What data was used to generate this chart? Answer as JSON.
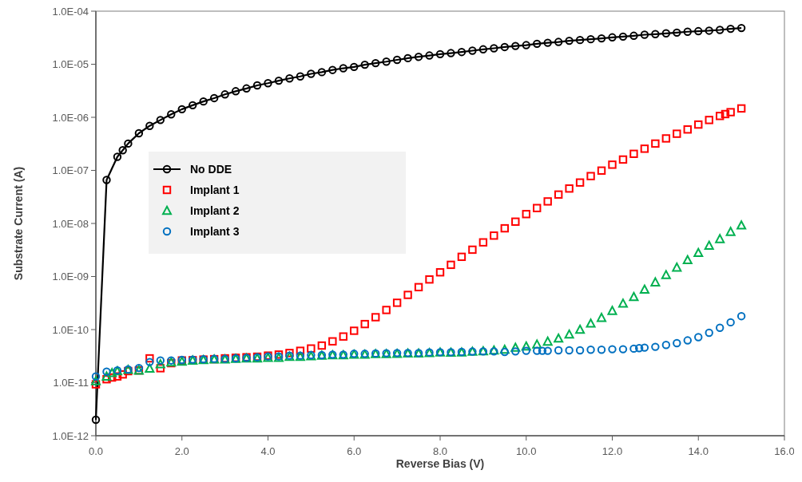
{
  "chart_data": {
    "type": "scatter",
    "xlabel": "Reverse Bias (V)",
    "ylabel": "Substrate Current (A)",
    "log": "y",
    "grid": false,
    "legend": "left",
    "xlim": [
      0,
      16
    ],
    "xticks": [
      {
        "value": 0,
        "label": "0.0"
      },
      {
        "value": 2,
        "label": "2.0"
      },
      {
        "value": 4,
        "label": "4.0"
      },
      {
        "value": 6,
        "label": "6.0"
      },
      {
        "value": 8,
        "label": "8.0"
      },
      {
        "value": 10,
        "label": "10.0"
      },
      {
        "value": 12,
        "label": "12.0"
      },
      {
        "value": 14,
        "label": "14.0"
      },
      {
        "value": 16,
        "label": "16.0"
      }
    ],
    "ylim": [
      1e-12,
      0.0001
    ],
    "yticks": [
      {
        "value": 1e-12,
        "label": "1.0E-12"
      },
      {
        "value": 1e-11,
        "label": "1.0E-11"
      },
      {
        "value": 1e-10,
        "label": "1.0E-10"
      },
      {
        "value": 1e-09,
        "label": "1.0E-09"
      },
      {
        "value": 1e-08,
        "label": "1.0E-08"
      },
      {
        "value": 1e-07,
        "label": "1.0E-07"
      },
      {
        "value": 1e-06,
        "label": "1.0E-06"
      },
      {
        "value": 1e-05,
        "label": "1.0E-05"
      },
      {
        "value": 0.0001,
        "label": "1.0E-04"
      }
    ],
    "series": [
      {
        "name": "No DDE",
        "type": "line",
        "marker": "circle",
        "line_style": "solid",
        "color": "#000000",
        "x": [
          0,
          0.25,
          0.5,
          0.625,
          0.75,
          1,
          1.25,
          1.5,
          1.75,
          2,
          2.25,
          2.5,
          2.75,
          3,
          3.25,
          3.5,
          3.75,
          4,
          4.25,
          4.5,
          4.75,
          5,
          5.25,
          5.5,
          5.75,
          6,
          6.25,
          6.5,
          6.75,
          7,
          7.25,
          7.5,
          7.75,
          8,
          8.25,
          8.5,
          8.75,
          9,
          9.25,
          9.5,
          9.75,
          10,
          10.25,
          10.5,
          10.75,
          11,
          11.25,
          11.5,
          11.75,
          12,
          12.25,
          12.5,
          12.75,
          13,
          13.25,
          13.5,
          13.75,
          14,
          14.25,
          14.5,
          14.75,
          15
        ],
        "values": [
          2e-12,
          6.6e-08,
          1.8e-07,
          2.4e-07,
          3.2e-07,
          5e-07,
          6.9e-07,
          8.9e-07,
          1.14e-06,
          1.42e-06,
          1.69e-06,
          1.99e-06,
          2.3e-06,
          2.7e-06,
          3.1e-06,
          3.5e-06,
          4e-06,
          4.4e-06,
          4.9e-06,
          5.4e-06,
          5.9e-06,
          6.6e-06,
          7.1e-06,
          7.8e-06,
          8.4e-06,
          8.9e-06,
          9.8e-06,
          1.05e-05,
          1.12e-05,
          1.21e-05,
          1.3e-05,
          1.38e-05,
          1.46e-05,
          1.55e-05,
          1.62e-05,
          1.7e-05,
          1.8e-05,
          1.91e-05,
          2e-05,
          2.11e-05,
          2.21e-05,
          2.29e-05,
          2.43e-05,
          2.54e-05,
          2.63e-05,
          2.77e-05,
          2.86e-05,
          2.96e-05,
          3.07e-05,
          3.21e-05,
          3.32e-05,
          3.44e-05,
          3.6e-05,
          3.69e-05,
          3.82e-05,
          3.95e-05,
          4.1e-05,
          4.2e-05,
          4.29e-05,
          4.43e-05,
          4.65e-05,
          4.82e-05
        ]
      },
      {
        "name": "Implant 1",
        "marker": "square",
        "color": "#ff0000",
        "x": [
          0,
          0.25,
          0.375,
          0.5,
          0.625,
          0.75,
          1,
          1.25,
          1.5,
          1.75,
          2,
          2.25,
          2.5,
          2.75,
          3,
          3.25,
          3.5,
          3.75,
          4,
          4.25,
          4.5,
          4.75,
          5,
          5.25,
          5.5,
          5.75,
          6,
          6.25,
          6.5,
          6.75,
          7,
          7.25,
          7.5,
          7.75,
          8,
          8.25,
          8.5,
          8.75,
          9,
          9.25,
          9.5,
          9.75,
          10,
          10.25,
          10.5,
          10.75,
          11,
          11.25,
          11.5,
          11.75,
          12,
          12.25,
          12.5,
          12.75,
          13,
          13.25,
          13.5,
          13.75,
          14,
          14.25,
          14.5,
          14.625,
          14.75,
          15
        ],
        "values": [
          9.3e-12,
          1.16e-11,
          1.25e-11,
          1.31e-11,
          1.43e-11,
          1.65e-11,
          1.7e-11,
          2.87e-11,
          1.87e-11,
          2.33e-11,
          2.62e-11,
          2.65e-11,
          2.72e-11,
          2.77e-11,
          2.87e-11,
          2.94e-11,
          3.01e-11,
          3.08e-11,
          3.23e-11,
          3.38e-11,
          3.62e-11,
          3.98e-11,
          4.4e-11,
          5e-11,
          6e-11,
          7.4e-11,
          9.5e-11,
          1.27e-10,
          1.71e-10,
          2.34e-10,
          3.2e-10,
          4.5e-10,
          6.3e-10,
          8.8e-10,
          1.2e-09,
          1.66e-09,
          2.35e-09,
          3.2e-09,
          4.4e-09,
          5.9e-09,
          8.1e-09,
          1.08e-08,
          1.5e-08,
          1.95e-08,
          2.6e-08,
          3.5e-08,
          4.55e-08,
          5.9e-08,
          7.8e-08,
          9.9e-08,
          1.28e-07,
          1.6e-07,
          2.05e-07,
          2.56e-07,
          3.2e-07,
          4e-07,
          4.9e-07,
          5.9e-07,
          7.3e-07,
          8.9e-07,
          1.06e-06,
          1.15e-06,
          1.25e-06,
          1.47e-06
        ]
      },
      {
        "name": "Implant 2",
        "marker": "triangle",
        "color": "#00b050",
        "x": [
          0,
          0.25,
          0.375,
          0.5,
          0.75,
          1,
          1.25,
          1.5,
          1.75,
          2,
          2.25,
          2.5,
          2.75,
          3,
          3.25,
          3.5,
          3.75,
          4,
          4.25,
          4.5,
          4.75,
          5,
          5.25,
          5.5,
          5.75,
          6,
          6.25,
          6.5,
          6.75,
          7,
          7.25,
          7.5,
          7.75,
          8,
          8.25,
          8.5,
          8.75,
          9,
          9.25,
          9.5,
          9.75,
          10,
          10.25,
          10.5,
          10.75,
          11,
          11.25,
          11.5,
          11.75,
          12,
          12.25,
          12.5,
          12.75,
          13,
          13.25,
          13.5,
          13.75,
          14,
          14.25,
          14.5,
          14.75,
          15
        ],
        "values": [
          1.07e-11,
          1.31e-11,
          1.52e-11,
          1.65e-11,
          1.75e-11,
          1.7e-11,
          1.85e-11,
          2.23e-11,
          2.42e-11,
          2.5e-11,
          2.62e-11,
          2.68e-11,
          2.74e-11,
          2.74e-11,
          2.81e-11,
          2.87e-11,
          2.87e-11,
          2.94e-11,
          2.94e-11,
          3.08e-11,
          3.08e-11,
          3.15e-11,
          3.23e-11,
          3.3e-11,
          3.3e-11,
          3.38e-11,
          3.38e-11,
          3.47e-11,
          3.47e-11,
          3.5e-11,
          3.55e-11,
          3.55e-11,
          3.62e-11,
          3.71e-11,
          3.7e-11,
          3.71e-11,
          3.85e-11,
          3.93e-11,
          4.07e-11,
          4.2e-11,
          4.57e-11,
          4.84e-11,
          5.26e-11,
          5.96e-11,
          6.8e-11,
          8.1e-11,
          1e-10,
          1.3e-10,
          1.67e-10,
          2.26e-10,
          3.1e-10,
          4.13e-10,
          5.7e-10,
          7.8e-10,
          1.07e-09,
          1.48e-09,
          2.04e-09,
          2.79e-09,
          3.82e-09,
          5.1e-09,
          6.97e-09,
          9.2e-09
        ]
      },
      {
        "name": "Implant 3",
        "marker": "circle",
        "color": "#0070c0",
        "x": [
          0,
          0.25,
          0.5,
          0.75,
          1,
          1.25,
          1.5,
          1.75,
          2,
          2.25,
          2.5,
          2.75,
          3,
          3.25,
          3.5,
          3.75,
          4,
          4.25,
          4.5,
          4.75,
          5,
          5.25,
          5.5,
          5.75,
          6,
          6.25,
          6.5,
          6.75,
          7,
          7.25,
          7.5,
          7.75,
          8,
          8.25,
          8.5,
          8.75,
          9,
          9.25,
          9.5,
          9.75,
          10,
          10.25,
          10.375,
          10.5,
          10.75,
          11,
          11.25,
          11.5,
          11.75,
          12,
          12.25,
          12.5,
          12.625,
          12.75,
          13,
          13.25,
          13.5,
          13.75,
          14,
          14.25,
          14.5,
          14.75,
          15
        ],
        "values": [
          1.31e-11,
          1.61e-11,
          1.7e-11,
          1.77e-11,
          1.89e-11,
          2.45e-11,
          2.62e-11,
          2.62e-11,
          2.68e-11,
          2.72e-11,
          2.77e-11,
          2.81e-11,
          2.81e-11,
          2.87e-11,
          2.94e-11,
          3.01e-11,
          3.12e-11,
          3.12e-11,
          3.23e-11,
          3.23e-11,
          3.3e-11,
          3.3e-11,
          3.38e-11,
          3.38e-11,
          3.5e-11,
          3.5e-11,
          3.55e-11,
          3.59e-11,
          3.62e-11,
          3.62e-11,
          3.62e-11,
          3.71e-11,
          3.75e-11,
          3.75e-11,
          3.79e-11,
          3.85e-11,
          3.88e-11,
          3.88e-11,
          3.79e-11,
          3.88e-11,
          3.98e-11,
          3.98e-11,
          3.98e-11,
          3.98e-11,
          4.07e-11,
          4.07e-11,
          4.07e-11,
          4.17e-11,
          4.17e-11,
          4.27e-11,
          4.27e-11,
          4.37e-11,
          4.47e-11,
          4.57e-11,
          4.73e-11,
          5.13e-11,
          5.56e-11,
          6.25e-11,
          7.2e-11,
          8.7e-11,
          1.08e-10,
          1.37e-10,
          1.79e-10
        ]
      }
    ]
  }
}
